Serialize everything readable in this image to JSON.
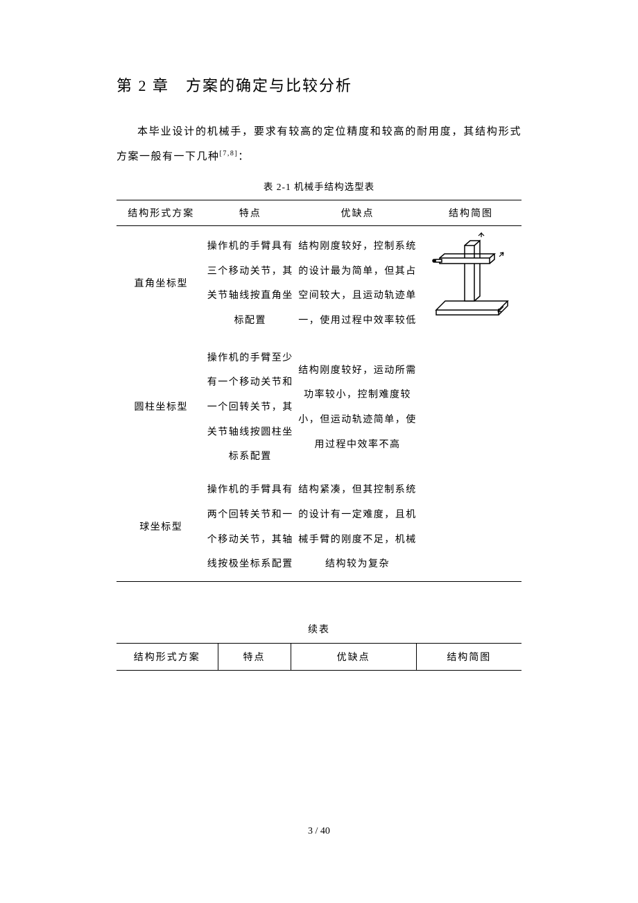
{
  "chapter_title": "第 2 章　方案的确定与比较分析",
  "paragraph_html": "本毕业设计的机械手，要求有较高的定位精度和较高的耐用度，其结构形式方案一般有一下几种<span class=\"sup\">[7,8]</span>：",
  "table_caption": "表 2-1 机械手结构选型表",
  "headers": {
    "scheme": "结构形式方案",
    "feature": "特点",
    "procon": "优缺点",
    "diagram": "结构简图"
  },
  "rows": [
    {
      "scheme": "直角坐标型",
      "feature": "操作机的手臂具有三个移动关节，其关节轴线按直角坐标配置",
      "procon": "结构刚度较好，控制系统的设计最为简单，但其占空间较大，且运动轨迹单一，使用过程中效率较低",
      "has_diagram": true
    },
    {
      "scheme": "圆柱坐标型",
      "feature": "操作机的手臂至少有一个移动关节和一个回转关节，其关节轴线按圆柱坐标系配置",
      "procon": "结构刚度较好，运动所需功率较小，控制难度较小，但运动轨迹简单，使用过程中效率不高",
      "has_diagram": false
    },
    {
      "scheme": "球坐标型",
      "feature": "操作机的手臂具有两个回转关节和一个移动关节，其轴线按极坐标系配置",
      "procon": "结构紧凑，但其控制系统的设计有一定难度，且机械手臂的刚度不足，机械结构较为复杂",
      "has_diagram": false
    }
  ],
  "continue_label": "续表",
  "page_number": "3 / 40",
  "colors": {
    "background": "#ffffff",
    "text": "#000000",
    "border": "#000000"
  }
}
